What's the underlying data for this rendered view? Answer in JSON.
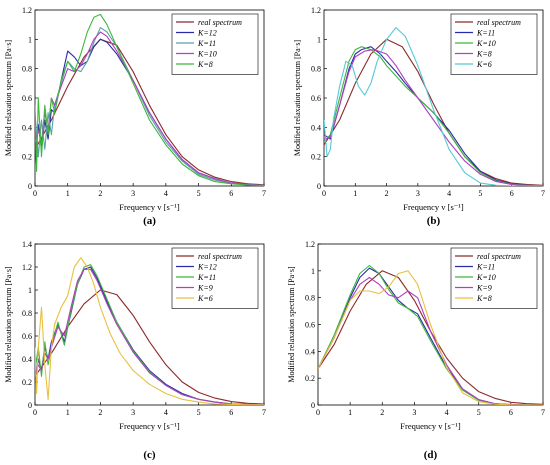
{
  "chart_data": [
    {
      "panel_label": "(a)",
      "type": "line",
      "xlabel": "Frequency v [s⁻¹]",
      "ylabel": "Modified relaxation spectrum [Pa·s]",
      "xlim": [
        0,
        7
      ],
      "ylim": [
        0,
        1.2
      ],
      "xticks": [
        "0",
        "1",
        "2",
        "3",
        "4",
        "5",
        "6",
        "7"
      ],
      "yticks": [
        "0",
        "0.2",
        "0.4",
        "0.6",
        "0.8",
        "1",
        "1.2"
      ],
      "grid": false,
      "legend_position": "top-right",
      "series": [
        {
          "name": "real spectrum",
          "color": "#8b2a2a",
          "x": [
            0,
            0.5,
            1,
            1.5,
            2,
            2.5,
            3,
            3.5,
            4,
            4.5,
            5,
            5.5,
            6,
            6.5,
            7
          ],
          "y": [
            0.25,
            0.45,
            0.68,
            0.88,
            1.0,
            0.96,
            0.78,
            0.55,
            0.35,
            0.2,
            0.11,
            0.06,
            0.03,
            0.015,
            0.008
          ]
        },
        {
          "name": "K=12",
          "color": "#2b2ba8",
          "x": [
            0,
            0.1,
            0.2,
            0.3,
            0.4,
            0.5,
            0.6,
            0.8,
            1.0,
            1.2,
            1.4,
            1.6,
            1.8,
            2.0,
            2.2,
            2.5,
            3,
            3.5,
            4,
            4.5,
            5,
            5.5,
            6,
            6.5,
            7
          ],
          "y": [
            0.15,
            0.42,
            0.25,
            0.45,
            0.32,
            0.52,
            0.5,
            0.72,
            0.92,
            0.88,
            0.82,
            0.85,
            0.95,
            1.0,
            0.98,
            0.9,
            0.72,
            0.5,
            0.32,
            0.18,
            0.09,
            0.05,
            0.02,
            0.01,
            0.005
          ]
        },
        {
          "name": "K=11",
          "color": "#5aa1a8",
          "x": [
            0,
            0.1,
            0.2,
            0.3,
            0.4,
            0.5,
            0.6,
            0.8,
            1.0,
            1.2,
            1.4,
            1.6,
            1.8,
            2.0,
            2.2,
            2.5,
            3,
            3.5,
            4,
            4.5,
            5,
            5.5,
            6,
            6.5,
            7
          ],
          "y": [
            0.5,
            0.2,
            0.45,
            0.25,
            0.5,
            0.35,
            0.55,
            0.7,
            0.85,
            0.8,
            0.78,
            0.85,
            0.98,
            1.08,
            1.05,
            0.95,
            0.72,
            0.48,
            0.3,
            0.17,
            0.08,
            0.04,
            0.02,
            0.01,
            0.005
          ]
        },
        {
          "name": "K=10",
          "color": "#b040c0",
          "x": [
            0,
            0.1,
            0.2,
            0.3,
            0.4,
            0.5,
            0.6,
            0.8,
            1.0,
            1.2,
            1.4,
            1.6,
            1.8,
            2.0,
            2.2,
            2.5,
            3,
            3.5,
            4,
            4.5,
            5,
            5.5,
            6,
            6.5,
            7
          ],
          "y": [
            0.3,
            0.38,
            0.3,
            0.5,
            0.38,
            0.6,
            0.55,
            0.68,
            0.8,
            0.78,
            0.82,
            0.9,
            1.0,
            1.05,
            1.02,
            0.92,
            0.72,
            0.5,
            0.32,
            0.18,
            0.09,
            0.05,
            0.02,
            0.01,
            0.005
          ]
        },
        {
          "name": "K=8",
          "color": "#3cb83c",
          "x": [
            0,
            0.05,
            0.1,
            0.2,
            0.3,
            0.4,
            0.5,
            0.6,
            0.8,
            1.0,
            1.2,
            1.4,
            1.6,
            1.8,
            2.0,
            2.2,
            2.5,
            3,
            3.5,
            4,
            4.5,
            5,
            5.5,
            6,
            6.5,
            7
          ],
          "y": [
            0.55,
            0.1,
            0.6,
            0.2,
            0.55,
            0.35,
            0.6,
            0.5,
            0.72,
            0.85,
            0.78,
            0.9,
            1.05,
            1.15,
            1.17,
            1.1,
            0.95,
            0.7,
            0.45,
            0.28,
            0.15,
            0.07,
            0.03,
            0.015,
            0.007,
            0.003
          ]
        }
      ]
    },
    {
      "panel_label": "(b)",
      "type": "line",
      "xlabel": "Frequency v [s⁻¹]",
      "ylabel": "Modified relaxation spectrum [Pa·s]",
      "xlim": [
        0,
        7
      ],
      "ylim": [
        0,
        1.2
      ],
      "xticks": [
        "0",
        "1",
        "2",
        "3",
        "4",
        "5",
        "6",
        "7"
      ],
      "yticks": [
        "0",
        "0.2",
        "0.4",
        "0.6",
        "0.8",
        "1",
        "1.2"
      ],
      "grid": false,
      "legend_position": "top-right",
      "series": [
        {
          "name": "real spectrum",
          "color": "#8b2a2a",
          "x": [
            0,
            0.5,
            1,
            1.5,
            2,
            2.5,
            3,
            3.5,
            4,
            4.5,
            5,
            5.5,
            6,
            6.5,
            7
          ],
          "y": [
            0.28,
            0.45,
            0.7,
            0.9,
            1.0,
            0.95,
            0.78,
            0.56,
            0.36,
            0.2,
            0.1,
            0.05,
            0.02,
            0.01,
            0.005
          ]
        },
        {
          "name": "K=11",
          "color": "#2b2ba8",
          "x": [
            0,
            0.2,
            0.5,
            0.8,
            1.0,
            1.2,
            1.5,
            1.8,
            2.0,
            2.3,
            2.6,
            3,
            3.5,
            4,
            4.5,
            5,
            5.5,
            6,
            6.5,
            7
          ],
          "y": [
            0.35,
            0.32,
            0.55,
            0.8,
            0.9,
            0.93,
            0.95,
            0.9,
            0.85,
            0.78,
            0.7,
            0.6,
            0.5,
            0.38,
            0.22,
            0.1,
            0.04,
            0.015,
            0.005,
            0.002
          ]
        },
        {
          "name": "K=10",
          "color": "#3cb83c",
          "x": [
            0,
            0.2,
            0.5,
            0.8,
            1.0,
            1.2,
            1.5,
            1.8,
            2.0,
            2.3,
            2.6,
            3,
            3.5,
            4,
            4.5,
            5,
            5.5,
            6,
            6.5,
            7
          ],
          "y": [
            0.3,
            0.35,
            0.6,
            0.85,
            0.93,
            0.95,
            0.93,
            0.88,
            0.82,
            0.75,
            0.68,
            0.6,
            0.5,
            0.36,
            0.2,
            0.09,
            0.035,
            0.012,
            0.004,
            0.001
          ]
        },
        {
          "name": "K=8",
          "color": "#b040c0",
          "x": [
            0,
            0.2,
            0.5,
            0.8,
            1.0,
            1.3,
            1.6,
            2.0,
            2.3,
            2.6,
            3,
            3.5,
            4,
            4.5,
            5,
            5.5,
            6,
            6.5,
            7
          ],
          "y": [
            0.32,
            0.33,
            0.55,
            0.78,
            0.88,
            0.92,
            0.93,
            0.9,
            0.82,
            0.72,
            0.6,
            0.45,
            0.3,
            0.17,
            0.08,
            0.03,
            0.01,
            0.003,
            0.001
          ]
        },
        {
          "name": "K=6",
          "color": "#56c8d8",
          "x": [
            0,
            0.1,
            0.2,
            0.3,
            0.5,
            0.7,
            0.9,
            1.1,
            1.3,
            1.5,
            1.7,
            2.0,
            2.3,
            2.6,
            3,
            3.5,
            4,
            4.5,
            5,
            5.5,
            6,
            6.5,
            7
          ],
          "y": [
            0.45,
            0.2,
            0.25,
            0.45,
            0.68,
            0.85,
            0.82,
            0.68,
            0.62,
            0.7,
            0.85,
            1.0,
            1.08,
            1.02,
            0.82,
            0.52,
            0.25,
            0.09,
            0.02,
            0.005,
            0.001,
            0,
            0
          ]
        }
      ]
    },
    {
      "panel_label": "(c)",
      "type": "line",
      "xlabel": "Frequency v [s⁻¹]",
      "ylabel": "Modified relaxation spectrum [Pa·s]",
      "xlim": [
        0,
        7
      ],
      "ylim": [
        0,
        1.4
      ],
      "xticks": [
        "0",
        "1",
        "2",
        "3",
        "4",
        "5",
        "6",
        "7"
      ],
      "yticks": [
        "0",
        "0.2",
        "0.4",
        "0.6",
        "0.8",
        "1",
        "1.2",
        "1.4"
      ],
      "grid": false,
      "legend_position": "top-right",
      "series": [
        {
          "name": "real spectrum",
          "color": "#8b2a2a",
          "x": [
            0,
            0.5,
            1,
            1.5,
            2,
            2.5,
            3,
            3.5,
            4,
            4.5,
            5,
            5.5,
            6,
            6.5,
            7
          ],
          "y": [
            0.25,
            0.45,
            0.68,
            0.88,
            1.0,
            0.96,
            0.78,
            0.55,
            0.35,
            0.2,
            0.11,
            0.06,
            0.03,
            0.015,
            0.008
          ]
        },
        {
          "name": "K=12",
          "color": "#2b2ba8",
          "x": [
            0,
            0.1,
            0.2,
            0.3,
            0.4,
            0.5,
            0.7,
            0.9,
            1.1,
            1.3,
            1.5,
            1.7,
            1.9,
            2.2,
            2.5,
            3,
            3.5,
            4,
            4.5,
            5,
            5.5,
            6,
            6.5,
            7
          ],
          "y": [
            0.2,
            0.4,
            0.3,
            0.5,
            0.4,
            0.55,
            0.7,
            0.55,
            0.8,
            1.05,
            1.18,
            1.2,
            1.1,
            0.9,
            0.72,
            0.48,
            0.3,
            0.18,
            0.1,
            0.05,
            0.025,
            0.01,
            0.005,
            0.002
          ]
        },
        {
          "name": "K=11",
          "color": "#3cb83c",
          "x": [
            0,
            0.1,
            0.2,
            0.3,
            0.4,
            0.5,
            0.7,
            0.9,
            1.1,
            1.3,
            1.5,
            1.7,
            1.9,
            2.2,
            2.5,
            3,
            3.5,
            4,
            4.5,
            5,
            5.5,
            6,
            6.5,
            7
          ],
          "y": [
            0.3,
            0.5,
            0.25,
            0.55,
            0.35,
            0.5,
            0.72,
            0.52,
            0.82,
            1.05,
            1.2,
            1.22,
            1.12,
            0.92,
            0.72,
            0.47,
            0.29,
            0.17,
            0.09,
            0.05,
            0.025,
            0.01,
            0.005,
            0.002
          ]
        },
        {
          "name": "K=9",
          "color": "#b040c0",
          "x": [
            0,
            0.1,
            0.2,
            0.3,
            0.4,
            0.5,
            0.7,
            0.9,
            1.1,
            1.3,
            1.5,
            1.7,
            1.9,
            2.2,
            2.5,
            3,
            3.5,
            4,
            4.5,
            5,
            5.5,
            6,
            6.5,
            7
          ],
          "y": [
            0.25,
            0.35,
            0.3,
            0.45,
            0.4,
            0.5,
            0.68,
            0.6,
            0.85,
            1.08,
            1.18,
            1.18,
            1.08,
            0.88,
            0.7,
            0.46,
            0.28,
            0.17,
            0.09,
            0.05,
            0.025,
            0.01,
            0.005,
            0.002
          ]
        },
        {
          "name": "K=6",
          "color": "#e8c040",
          "x": [
            0,
            0.05,
            0.1,
            0.2,
            0.3,
            0.4,
            0.5,
            0.6,
            0.8,
            1.0,
            1.2,
            1.4,
            1.6,
            1.8,
            2.0,
            2.3,
            2.6,
            3,
            3.5,
            4,
            4.5,
            5,
            5.5,
            6,
            6.5,
            7
          ],
          "y": [
            0.5,
            0.1,
            0.5,
            0.85,
            0.35,
            0.05,
            0.5,
            0.7,
            0.85,
            0.95,
            1.2,
            1.28,
            1.2,
            1.05,
            0.85,
            0.62,
            0.45,
            0.3,
            0.18,
            0.1,
            0.05,
            0.025,
            0.01,
            0.005,
            0.002,
            0.001
          ]
        }
      ]
    },
    {
      "panel_label": "(d)",
      "type": "line",
      "xlabel": "Frequency v [s⁻¹]",
      "ylabel": "Modified relaxation spectrum [Pa·s]",
      "xlim": [
        0,
        7
      ],
      "ylim": [
        0,
        1.2
      ],
      "xticks": [
        "0",
        "1",
        "2",
        "3",
        "4",
        "5",
        "6",
        "7"
      ],
      "yticks": [
        "0",
        "0.2",
        "0.4",
        "0.6",
        "0.8",
        "1",
        "1.2"
      ],
      "grid": false,
      "legend_position": "top-right",
      "series": [
        {
          "name": "real spectrum",
          "color": "#8b2a2a",
          "x": [
            0,
            0.5,
            1,
            1.5,
            2,
            2.5,
            3,
            3.5,
            4,
            4.5,
            5,
            5.5,
            6,
            6.5,
            7
          ],
          "y": [
            0.27,
            0.45,
            0.7,
            0.9,
            1.0,
            0.95,
            0.78,
            0.55,
            0.35,
            0.2,
            0.1,
            0.05,
            0.02,
            0.01,
            0.005
          ]
        },
        {
          "name": "K=11",
          "color": "#2b2ba8",
          "x": [
            0,
            0.5,
            1,
            1.3,
            1.6,
            1.9,
            2.2,
            2.5,
            2.8,
            3.1,
            3.5,
            4,
            4.5,
            5,
            5.5,
            6,
            6.5,
            7
          ],
          "y": [
            0.27,
            0.5,
            0.8,
            0.95,
            1.02,
            0.98,
            0.88,
            0.78,
            0.72,
            0.68,
            0.5,
            0.28,
            0.12,
            0.04,
            0.01,
            0.003,
            0.001,
            0
          ]
        },
        {
          "name": "K=10",
          "color": "#3cb83c",
          "x": [
            0,
            0.5,
            1,
            1.3,
            1.6,
            1.9,
            2.2,
            2.5,
            2.8,
            3.1,
            3.5,
            4,
            4.5,
            5,
            5.5,
            6,
            6.5,
            7
          ],
          "y": [
            0.27,
            0.52,
            0.82,
            0.98,
            1.04,
            0.98,
            0.86,
            0.76,
            0.72,
            0.66,
            0.48,
            0.27,
            0.11,
            0.035,
            0.01,
            0.003,
            0.001,
            0
          ]
        },
        {
          "name": "K=9",
          "color": "#b040c0",
          "x": [
            0,
            0.5,
            1,
            1.3,
            1.6,
            1.9,
            2.2,
            2.5,
            2.8,
            3.1,
            3.5,
            4,
            4.5,
            5,
            5.5,
            6,
            6.5,
            7
          ],
          "y": [
            0.27,
            0.5,
            0.78,
            0.9,
            0.95,
            0.9,
            0.82,
            0.8,
            0.85,
            0.8,
            0.55,
            0.3,
            0.12,
            0.04,
            0.01,
            0.003,
            0.001,
            0
          ]
        },
        {
          "name": "K=8",
          "color": "#e8c040",
          "x": [
            0,
            0.5,
            1,
            1.3,
            1.6,
            1.9,
            2.2,
            2.5,
            2.8,
            3.1,
            3.5,
            4,
            4.5,
            5,
            5.5,
            6,
            6.5,
            7
          ],
          "y": [
            0.27,
            0.5,
            0.78,
            0.85,
            0.85,
            0.83,
            0.88,
            0.98,
            1.0,
            0.9,
            0.6,
            0.28,
            0.09,
            0.025,
            0.006,
            0.001,
            0,
            0
          ]
        }
      ]
    }
  ]
}
